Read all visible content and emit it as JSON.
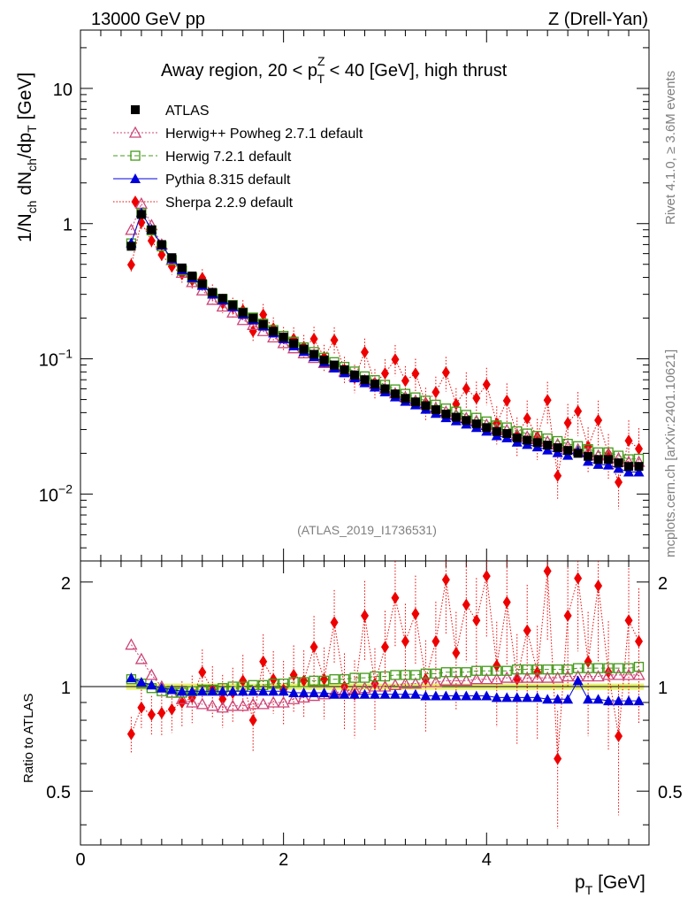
{
  "header": {
    "left": "13000 GeV pp",
    "right": "Z (Drell-Yan)"
  },
  "title_parts": {
    "before": "Away region, 20 < p",
    "sup": "Z",
    "sub": "T",
    "after": " < 40 [GeV], high thrust"
  },
  "side_labels": {
    "rivet": "Rivet 4.1.0, ≥ 3.6M events",
    "mcplots": "mcplots.cern.ch [arXiv:2401.10621]"
  },
  "watermark": "(ATLAS_2019_I1736531)",
  "y_axis_main": {
    "label": "1/N_ch dN_ch/dp_T [GeV]",
    "ticks": [
      {
        "value": 0.01,
        "base": "10",
        "exp": "−2"
      },
      {
        "value": 0.1,
        "base": "10",
        "exp": "−1"
      },
      {
        "value": 1,
        "base": "1",
        "exp": ""
      },
      {
        "value": 10,
        "base": "10",
        "exp": ""
      }
    ]
  },
  "y_axis_ratio": {
    "label": "Ratio to ATLAS",
    "ticks": [
      {
        "value": 0.5,
        "label": "0.5"
      },
      {
        "value": 1,
        "label": "1"
      },
      {
        "value": 2,
        "label": "2"
      }
    ]
  },
  "x_axis": {
    "label": "p_T [GeV]",
    "ticks": [
      {
        "value": 0,
        "label": "0"
      },
      {
        "value": 2,
        "label": "2"
      },
      {
        "value": 4,
        "label": "4"
      }
    ]
  },
  "legend": [
    {
      "key": "atlas",
      "label": "ATLAS"
    },
    {
      "key": "herwigpp",
      "label": "Herwig++ Powheg 2.7.1 default"
    },
    {
      "key": "herwig7",
      "label": "Herwig 7.2.1 default"
    },
    {
      "key": "pythia",
      "label": "Pythia 8.315 default"
    },
    {
      "key": "sherpa",
      "label": "Sherpa 2.2.9 default"
    }
  ],
  "chart_data": {
    "type": "scatter",
    "title": "Away region, 20 < pT^Z < 40 [GeV], high thrust",
    "xlabel": "p_T [GeV]",
    "ylabel": "1/N_ch dN_ch/dp_T [GeV]",
    "xlim": [
      0,
      5.6
    ],
    "ylim": [
      0.0032,
      27
    ],
    "ylog": true,
    "ratio_ylabel": "Ratio to ATLAS",
    "ratio_ylim": [
      0.35,
      2.3
    ],
    "ratio_ylog": true,
    "x": [
      0.5,
      0.6,
      0.7,
      0.8,
      0.9,
      1.0,
      1.1,
      1.2,
      1.3,
      1.4,
      1.5,
      1.6,
      1.7,
      1.8,
      1.9,
      2.0,
      2.1,
      2.2,
      2.3,
      2.4,
      2.5,
      2.6,
      2.7,
      2.8,
      2.9,
      3.0,
      3.1,
      3.2,
      3.3,
      3.4,
      3.5,
      3.6,
      3.7,
      3.8,
      3.9,
      4.0,
      4.1,
      4.2,
      4.3,
      4.4,
      4.5,
      4.6,
      4.7,
      4.8,
      4.9,
      5.0,
      5.1,
      5.2,
      5.3,
      5.4,
      5.5
    ],
    "series": [
      {
        "key": "atlas",
        "name": "ATLAS",
        "values": [
          0.68,
          1.17,
          0.9,
          0.7,
          0.56,
          0.47,
          0.41,
          0.36,
          0.31,
          0.28,
          0.25,
          0.22,
          0.2,
          0.18,
          0.16,
          0.145,
          0.13,
          0.118,
          0.108,
          0.098,
          0.09,
          0.083,
          0.076,
          0.07,
          0.065,
          0.06,
          0.055,
          0.051,
          0.048,
          0.045,
          0.042,
          0.039,
          0.037,
          0.035,
          0.033,
          0.031,
          0.029,
          0.028,
          0.026,
          0.025,
          0.024,
          0.023,
          0.022,
          0.021,
          0.02,
          0.019,
          0.018,
          0.018,
          0.017,
          0.016,
          0.016
        ]
      },
      {
        "key": "herwigpp",
        "name": "Herwig++ Powheg 2.7.1 default",
        "ratio": [
          1.32,
          1.2,
          1.08,
          1.0,
          0.96,
          0.92,
          0.9,
          0.89,
          0.88,
          0.87,
          0.88,
          0.88,
          0.89,
          0.89,
          0.9,
          0.9,
          0.92,
          0.93,
          0.94,
          0.95,
          0.96,
          0.97,
          0.98,
          0.99,
          1.0,
          1.0,
          1.01,
          1.02,
          1.02,
          1.03,
          1.03,
          1.04,
          1.04,
          1.04,
          1.05,
          1.05,
          1.05,
          1.06,
          1.06,
          1.06,
          1.06,
          1.06,
          1.06,
          1.07,
          1.07,
          1.07,
          1.07,
          1.08,
          1.08,
          1.08,
          1.08
        ]
      },
      {
        "key": "herwig7",
        "name": "Herwig 7.2.1 default",
        "ratio": [
          1.05,
          1.02,
          0.99,
          0.97,
          0.96,
          0.96,
          0.97,
          0.98,
          0.98,
          0.99,
          1.0,
          1.0,
          1.01,
          1.01,
          1.02,
          1.02,
          1.03,
          1.03,
          1.04,
          1.04,
          1.05,
          1.05,
          1.06,
          1.06,
          1.07,
          1.07,
          1.08,
          1.08,
          1.08,
          1.09,
          1.09,
          1.1,
          1.1,
          1.1,
          1.11,
          1.11,
          1.11,
          1.11,
          1.12,
          1.12,
          1.12,
          1.12,
          1.12,
          1.12,
          1.13,
          1.13,
          1.13,
          1.13,
          1.13,
          1.13,
          1.14
        ]
      },
      {
        "key": "pythia",
        "name": "Pythia 8.315 default",
        "ratio": [
          1.06,
          1.03,
          1.01,
          0.99,
          0.98,
          0.97,
          0.97,
          0.97,
          0.97,
          0.97,
          0.97,
          0.97,
          0.97,
          0.97,
          0.97,
          0.97,
          0.96,
          0.96,
          0.96,
          0.96,
          0.95,
          0.95,
          0.95,
          0.95,
          0.95,
          0.95,
          0.95,
          0.95,
          0.95,
          0.94,
          0.94,
          0.94,
          0.94,
          0.94,
          0.94,
          0.94,
          0.93,
          0.93,
          0.93,
          0.93,
          0.93,
          0.92,
          0.92,
          0.92,
          1.04,
          0.92,
          0.92,
          0.91,
          0.91,
          0.91,
          0.91
        ]
      },
      {
        "key": "sherpa",
        "name": "Sherpa 2.2.9 default",
        "ratio": [
          0.73,
          0.87,
          0.83,
          0.84,
          0.86,
          0.9,
          0.93,
          1.1,
          0.98,
          0.92,
          0.96,
          1.04,
          0.8,
          1.18,
          1.05,
          0.98,
          1.08,
          1.04,
          1.3,
          1.05,
          1.53,
          1.0,
          0.95,
          1.6,
          1.02,
          1.3,
          1.8,
          1.35,
          1.62,
          1.05,
          1.35,
          2.03,
          1.25,
          1.72,
          1.55,
          2.08,
          1.15,
          1.75,
          1.05,
          1.45,
          1.1,
          2.15,
          0.62,
          1.6,
          2.05,
          1.18,
          1.95,
          1.1,
          0.72,
          1.55,
          1.35
        ]
      }
    ]
  },
  "colors": {
    "atlas": "#000000",
    "herwigpp": "#cc4477",
    "herwig7": "#44991a",
    "pythia": "#0000dd",
    "sherpa": "#ee0000",
    "band": "#ddee44",
    "band_outline": "#66cc44"
  }
}
